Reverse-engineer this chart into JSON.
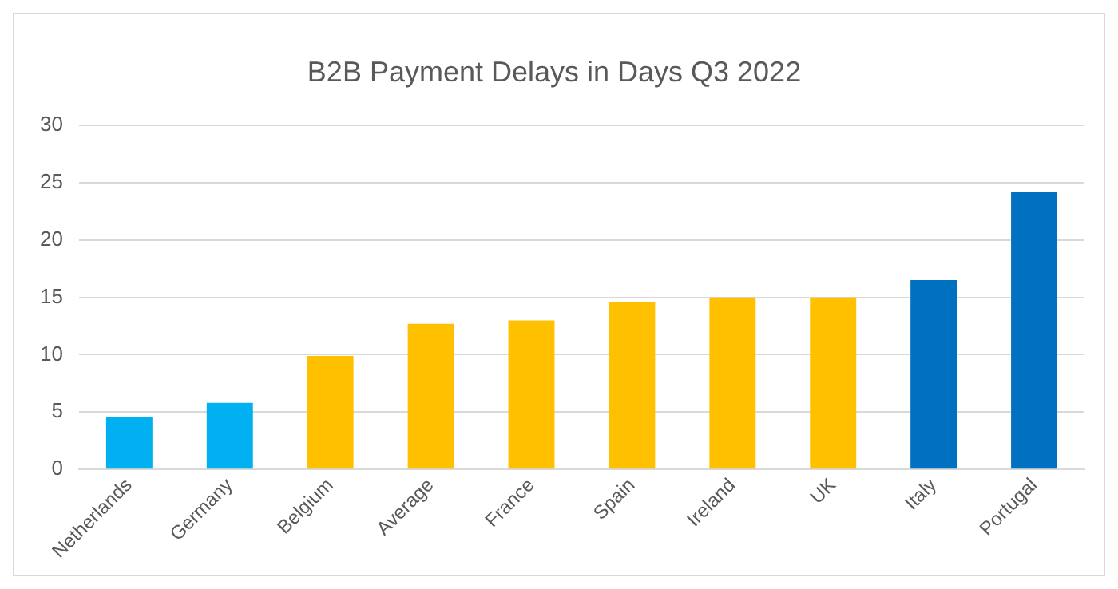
{
  "chart_data": {
    "type": "bar",
    "title": "B2B Payment Delays in Days Q3 2022",
    "categories": [
      "Netherlands",
      "Germany",
      "Belgium",
      "Average",
      "France",
      "Spain",
      "Ireland",
      "UK",
      "Italy",
      "Portugal"
    ],
    "values": [
      4.6,
      5.8,
      9.9,
      12.7,
      13.0,
      14.6,
      15.0,
      15.0,
      16.5,
      24.2
    ],
    "colors": [
      "#00b0f0",
      "#00b0f0",
      "#ffc000",
      "#ffc000",
      "#ffc000",
      "#ffc000",
      "#ffc000",
      "#ffc000",
      "#0070c0",
      "#0070c0"
    ],
    "ylim": [
      0,
      30
    ],
    "yticks": [
      0,
      5,
      10,
      15,
      20,
      25,
      30
    ],
    "grid": "y",
    "legend": false
  }
}
